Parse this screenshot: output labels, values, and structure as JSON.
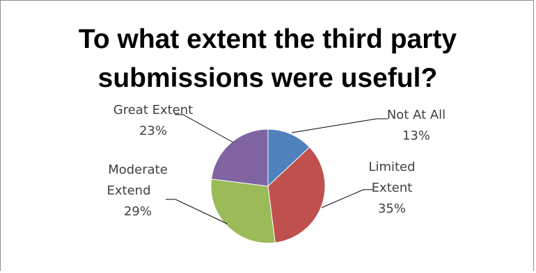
{
  "chart_data": {
    "type": "pie",
    "title_lines": [
      "To what extent the third party",
      "submissions were useful?"
    ],
    "slices": [
      {
        "label": "Not At All",
        "pct_text": "13%",
        "value": 13,
        "color": "#4F81BD"
      },
      {
        "label": "Limited Extent",
        "pct_text": "35%",
        "value": 35,
        "color": "#C0504D"
      },
      {
        "label": "Moderate Extend",
        "pct_text": "29%",
        "value": 29,
        "color": "#9BBB59"
      },
      {
        "label": "Great Extent",
        "pct_text": "23%",
        "value": 23,
        "color": "#8064A2"
      }
    ]
  }
}
